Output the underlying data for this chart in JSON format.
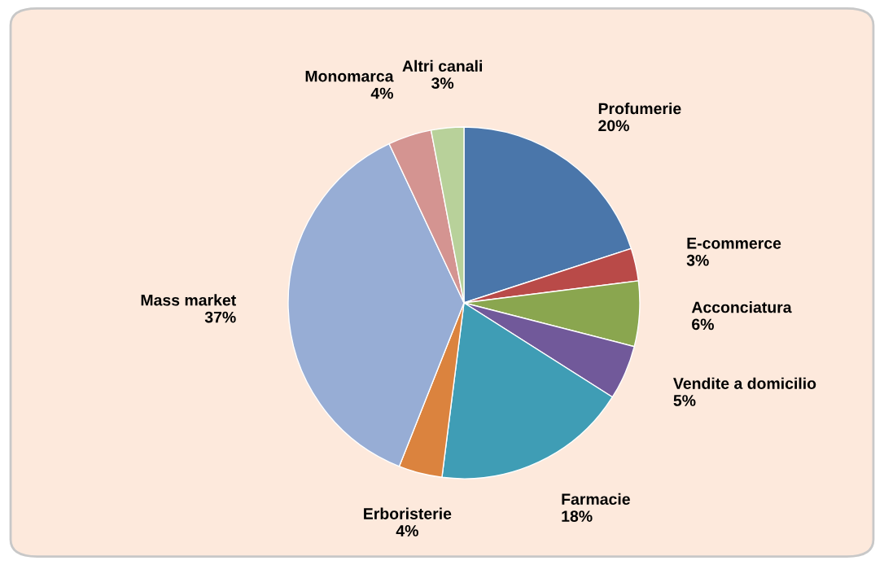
{
  "chart_data": {
    "type": "pie",
    "categories": [
      "Profumerie",
      "E-commerce",
      "Acconciatura",
      "Vendite a domicilio",
      "Farmacie",
      "Erboristerie",
      "Mass market",
      "Monomarca",
      "Altri canali"
    ],
    "values": [
      20,
      3,
      6,
      5,
      18,
      4,
      37,
      4,
      3
    ],
    "value_labels": [
      "20%",
      "3%",
      "6%",
      "5%",
      "18%",
      "4%",
      "37%",
      "4%",
      "3%"
    ],
    "colors": [
      "#4a76aa",
      "#b94a48",
      "#8aa64f",
      "#71599a",
      "#3f9db5",
      "#db833e",
      "#97add5",
      "#d49491",
      "#b8d19a"
    ],
    "legend": false
  }
}
